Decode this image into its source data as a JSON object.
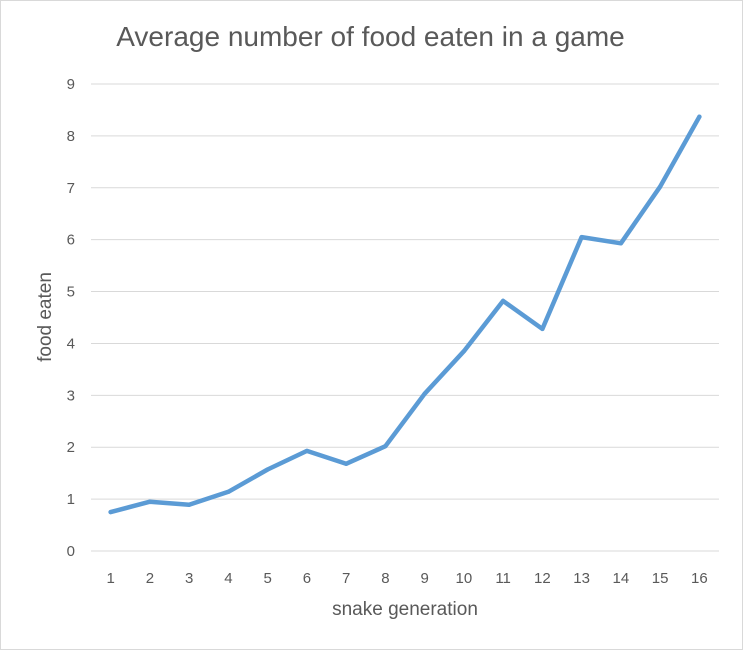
{
  "chart_data": {
    "type": "line",
    "title": "Average number of food eaten in a game",
    "xlabel": "snake generation",
    "ylabel": "food eaten",
    "categories": [
      "1",
      "2",
      "3",
      "4",
      "5",
      "6",
      "7",
      "8",
      "9",
      "10",
      "11",
      "12",
      "13",
      "14",
      "15",
      "16"
    ],
    "series": [
      {
        "values": [
          0.75,
          0.95,
          0.89,
          1.14,
          1.57,
          1.93,
          1.68,
          2.02,
          3.03,
          3.85,
          4.82,
          4.28,
          6.05,
          5.93,
          7.02,
          8.37
        ]
      }
    ],
    "ylim": [
      0,
      9
    ],
    "yticks": [
      "0",
      "1",
      "2",
      "3",
      "4",
      "5",
      "6",
      "7",
      "8",
      "9"
    ],
    "grid": true,
    "legend": "none",
    "colors": {
      "line": "#5b9bd5",
      "grid": "#d9d9d9",
      "text": "#595959"
    }
  }
}
